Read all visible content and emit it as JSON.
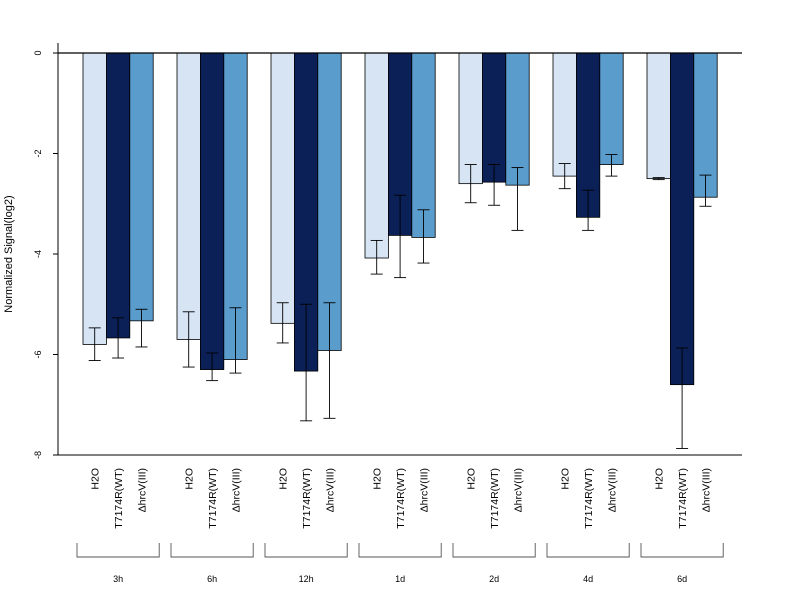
{
  "chart_data": {
    "type": "bar",
    "ylabel": "Normalized Signal(log2)",
    "ylim": [
      -8,
      0
    ],
    "yticks": [
      0,
      -2,
      -4,
      -6,
      -8
    ],
    "groups": [
      "3h",
      "6h",
      "12h",
      "1d",
      "2d",
      "4d",
      "6d"
    ],
    "bar_labels": [
      "H2O",
      "T7174R(WT)",
      "ΔhrcV(III)"
    ],
    "colors": [
      "#d6e4f4",
      "#0b2057",
      "#5a9ccc"
    ],
    "series": [
      {
        "label": "H2O",
        "values": [
          -5.8,
          -5.7,
          -5.38,
          -4.08,
          -2.6,
          -2.45,
          -2.5
        ],
        "err_low": [
          -6.12,
          -6.25,
          -5.77,
          -4.4,
          -2.98,
          -2.7,
          -2.52
        ],
        "err_high": [
          -5.47,
          -5.15,
          -4.97,
          -3.73,
          -2.22,
          -2.2,
          -2.48
        ]
      },
      {
        "label": "T7174R(WT)",
        "values": [
          -5.67,
          -6.3,
          -6.33,
          -3.63,
          -2.57,
          -3.27,
          -6.6
        ],
        "err_low": [
          -6.07,
          -6.52,
          -7.32,
          -4.47,
          -3.03,
          -3.53,
          -7.87
        ],
        "err_high": [
          -5.27,
          -5.97,
          -5.0,
          -2.83,
          -2.22,
          -2.73,
          -5.87
        ]
      },
      {
        "label": "ΔhrcV(III)",
        "values": [
          -5.33,
          -6.1,
          -5.92,
          -3.67,
          -2.63,
          -2.22,
          -2.87
        ],
        "err_low": [
          -5.85,
          -6.37,
          -7.27,
          -4.18,
          -3.53,
          -2.45,
          -3.05
        ],
        "err_high": [
          -5.1,
          -5.07,
          -4.97,
          -3.12,
          -2.28,
          -2.02,
          -2.43
        ]
      }
    ]
  }
}
